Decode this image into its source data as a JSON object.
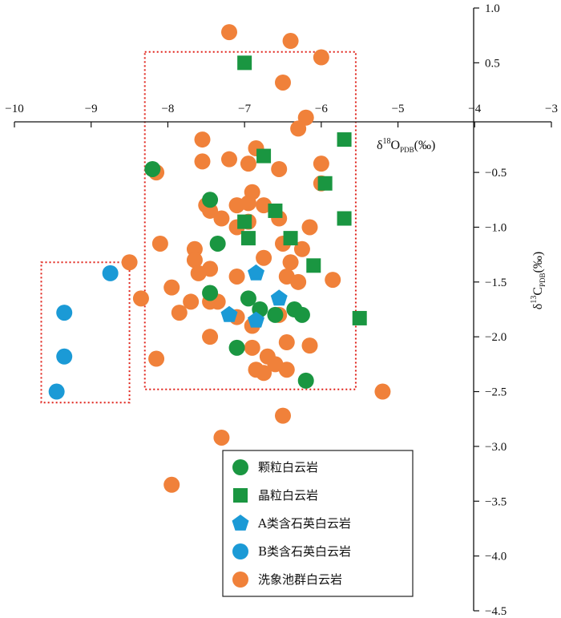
{
  "chart_data": {
    "type": "scatter",
    "title": "",
    "xlabel": {
      "prefix": "δ",
      "sup": "18",
      "main": "O",
      "sub": "PDB",
      "unit": "(‰)"
    },
    "ylabel": {
      "prefix": "δ",
      "sup": "13",
      "main": "C",
      "sub": "PDB",
      "unit": "(‰)"
    },
    "xlim": [
      -10,
      -3
    ],
    "ylim": [
      -4.5,
      1.0
    ],
    "x_ticks": [
      "−10",
      "−9",
      "−8",
      "−7",
      "−6",
      "−5",
      "−4",
      "−3"
    ],
    "y_ticks": [
      "1.0",
      "0.5",
      "−0.5",
      "−1.0",
      "−1.5",
      "−2.0",
      "−2.5",
      "−3.0",
      "−3.5",
      "−4.0",
      "−4.5"
    ],
    "grid": false,
    "legend_position": "bottom-center",
    "colors": {
      "green": "#1a9641",
      "blue_a": "#1b9ad6",
      "blue_b": "#1b9ad6",
      "orange": "#f0813a",
      "box": "#e0231b"
    },
    "boxes": [
      {
        "x": [
          -8.3,
          -5.55
        ],
        "y": [
          -2.48,
          0.6
        ]
      },
      {
        "x": [
          -9.65,
          -8.5
        ],
        "y": [
          -2.6,
          -1.32
        ]
      }
    ],
    "series": [
      {
        "name": "颗粒白云岩",
        "marker": "circle",
        "color": "#1a9641",
        "points": [
          [
            -8.2,
            -0.47
          ],
          [
            -7.45,
            -0.75
          ],
          [
            -7.35,
            -1.15
          ],
          [
            -7.45,
            -1.6
          ],
          [
            -6.95,
            -1.65
          ],
          [
            -6.8,
            -1.75
          ],
          [
            -7.1,
            -2.1
          ],
          [
            -6.6,
            -1.8
          ],
          [
            -6.35,
            -1.75
          ],
          [
            -6.25,
            -1.8
          ],
          [
            -6.2,
            -2.4
          ]
        ]
      },
      {
        "name": "晶粒白云岩",
        "marker": "square",
        "color": "#1a9641",
        "points": [
          [
            -7.0,
            0.5
          ],
          [
            -6.75,
            -0.35
          ],
          [
            -6.6,
            -0.85
          ],
          [
            -7.0,
            -0.95
          ],
          [
            -6.95,
            -1.1
          ],
          [
            -6.4,
            -1.1
          ],
          [
            -6.1,
            -1.35
          ],
          [
            -5.95,
            -0.6
          ],
          [
            -5.7,
            -0.2
          ],
          [
            -5.7,
            -0.92
          ],
          [
            -5.5,
            -1.83
          ]
        ]
      },
      {
        "name": "A类含石英白云岩",
        "marker": "pentagon",
        "color": "#1b9ad6",
        "points": [
          [
            -6.85,
            -1.42
          ],
          [
            -6.55,
            -1.65
          ],
          [
            -7.2,
            -1.8
          ],
          [
            -6.85,
            -1.85
          ]
        ]
      },
      {
        "name": "B类含石英白云岩",
        "marker": "circle",
        "color": "#1b9ad6",
        "points": [
          [
            -8.75,
            -1.42
          ],
          [
            -9.35,
            -1.78
          ],
          [
            -9.35,
            -2.18
          ],
          [
            -9.45,
            -2.5
          ]
        ]
      },
      {
        "name": "洗象池群白云岩",
        "marker": "circle",
        "color": "#f0813a",
        "points": [
          [
            -7.2,
            0.78
          ],
          [
            -6.4,
            0.7
          ],
          [
            -6.0,
            0.55
          ],
          [
            -6.5,
            0.32
          ],
          [
            -6.2,
            0.0
          ],
          [
            -6.3,
            -0.1
          ],
          [
            -7.55,
            -0.2
          ],
          [
            -6.85,
            -0.28
          ],
          [
            -7.55,
            -0.4
          ],
          [
            -7.2,
            -0.38
          ],
          [
            -6.95,
            -0.42
          ],
          [
            -6.55,
            -0.47
          ],
          [
            -6.0,
            -0.42
          ],
          [
            -8.15,
            -0.5
          ],
          [
            -6.0,
            -0.6
          ],
          [
            -6.9,
            -0.68
          ],
          [
            -7.5,
            -0.8
          ],
          [
            -7.45,
            -0.85
          ],
          [
            -7.3,
            -0.92
          ],
          [
            -7.1,
            -0.8
          ],
          [
            -6.95,
            -0.78
          ],
          [
            -6.75,
            -0.8
          ],
          [
            -6.95,
            -0.95
          ],
          [
            -7.1,
            -1.0
          ],
          [
            -6.55,
            -0.92
          ],
          [
            -6.15,
            -1.0
          ],
          [
            -6.5,
            -1.15
          ],
          [
            -6.25,
            -1.2
          ],
          [
            -7.65,
            -1.2
          ],
          [
            -8.1,
            -1.15
          ],
          [
            -8.5,
            -1.32
          ],
          [
            -7.65,
            -1.3
          ],
          [
            -7.45,
            -1.38
          ],
          [
            -7.6,
            -1.42
          ],
          [
            -6.75,
            -1.28
          ],
          [
            -6.4,
            -1.32
          ],
          [
            -6.45,
            -1.45
          ],
          [
            -7.1,
            -1.45
          ],
          [
            -6.3,
            -1.5
          ],
          [
            -5.85,
            -1.48
          ],
          [
            -7.95,
            -1.55
          ],
          [
            -7.45,
            -1.68
          ],
          [
            -7.7,
            -1.68
          ],
          [
            -7.35,
            -1.68
          ],
          [
            -8.35,
            -1.65
          ],
          [
            -7.85,
            -1.78
          ],
          [
            -7.1,
            -1.82
          ],
          [
            -6.9,
            -1.9
          ],
          [
            -6.55,
            -1.8
          ],
          [
            -7.45,
            -2.0
          ],
          [
            -6.9,
            -2.1
          ],
          [
            -6.45,
            -2.05
          ],
          [
            -6.15,
            -2.08
          ],
          [
            -6.7,
            -2.18
          ],
          [
            -6.6,
            -2.25
          ],
          [
            -6.85,
            -2.3
          ],
          [
            -6.75,
            -2.33
          ],
          [
            -6.45,
            -2.3
          ],
          [
            -8.15,
            -2.2
          ],
          [
            -5.2,
            -2.5
          ],
          [
            -6.5,
            -2.72
          ],
          [
            -7.3,
            -2.92
          ],
          [
            -7.95,
            -3.35
          ]
        ]
      }
    ]
  }
}
